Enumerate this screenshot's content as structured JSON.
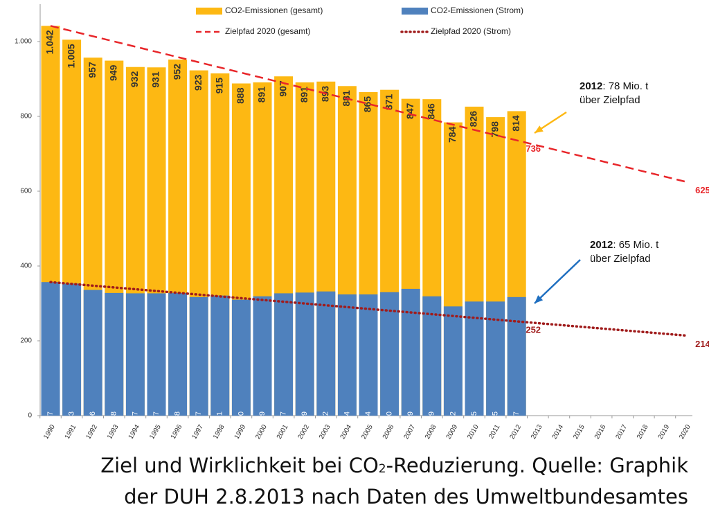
{
  "chart_data": {
    "type": "bar",
    "categories": [
      "1990",
      "1991",
      "1992",
      "1993",
      "1994",
      "1995",
      "1996",
      "1997",
      "1998",
      "1999",
      "2000",
      "2001",
      "2002",
      "2003",
      "2004",
      "2005",
      "2006",
      "2007",
      "2008",
      "2009",
      "2010",
      "2011",
      "2012",
      "2013",
      "2014",
      "2015",
      "2016",
      "2017",
      "2018",
      "2019",
      "2020"
    ],
    "series": [
      {
        "name": "CO2-Emissionen (gesamt)",
        "color": "#fdb813",
        "text_color": "#333333",
        "values": [
          1042,
          1005,
          957,
          949,
          932,
          931,
          952,
          923,
          915,
          888,
          891,
          907,
          891,
          893,
          881,
          865,
          871,
          847,
          846,
          784,
          826,
          798,
          814,
          null,
          null,
          null,
          null,
          null,
          null,
          null,
          null
        ],
        "value_labels": [
          "1.042",
          "1.005",
          "957",
          "949",
          "932",
          "931",
          "952",
          "923",
          "915",
          "888",
          "891",
          "907",
          "891",
          "893",
          "881",
          "865",
          "871",
          "847",
          "846",
          "784",
          "826",
          "798",
          "814",
          null,
          null,
          null,
          null,
          null,
          null,
          null,
          null
        ]
      },
      {
        "name": "CO2-Emissionen (Strom)",
        "color": "#4f81bd",
        "text_color": "#ffffff",
        "values": [
          357,
          353,
          336,
          328,
          327,
          327,
          328,
          317,
          321,
          310,
          319,
          327,
          329,
          332,
          324,
          324,
          330,
          339,
          319,
          292,
          305,
          305,
          317,
          null,
          null,
          null,
          null,
          null,
          null,
          null,
          null
        ]
      },
      {
        "name": "Zielpfad 2020 (gesamt)",
        "type": "line",
        "style": "dashed",
        "color": "#e8262a",
        "x": [
          "1990",
          "2012",
          "2020"
        ],
        "values": [
          1042,
          736,
          625
        ]
      },
      {
        "name": "Zielpfad 2020 (Strom)",
        "type": "line",
        "style": "dotted",
        "color": "#a01c1c",
        "x": [
          "1990",
          "2012",
          "2020"
        ],
        "values": [
          357,
          252,
          214
        ]
      }
    ],
    "ylim": [
      0,
      1100
    ],
    "yticks": [
      0,
      200,
      400,
      600,
      800,
      {
        "value": 1000,
        "label": "1.000"
      }
    ],
    "annotations": [
      {
        "bold": "2012",
        "text": ": 78 Mio. t",
        "text2": "über Zielpfad",
        "color": "#fdb813"
      },
      {
        "bold": "2012",
        "text": ": 65 Mio. t",
        "text2": "über Zielpfad",
        "color": "#1f6fc0"
      }
    ],
    "caption": [
      "Ziel und Wirklichkeit bei CO",
      "2",
      "-Reduzierung. Quelle: Graphik",
      "der DUH 2.8.2013 nach Daten des Umweltbundesamtes"
    ]
  }
}
